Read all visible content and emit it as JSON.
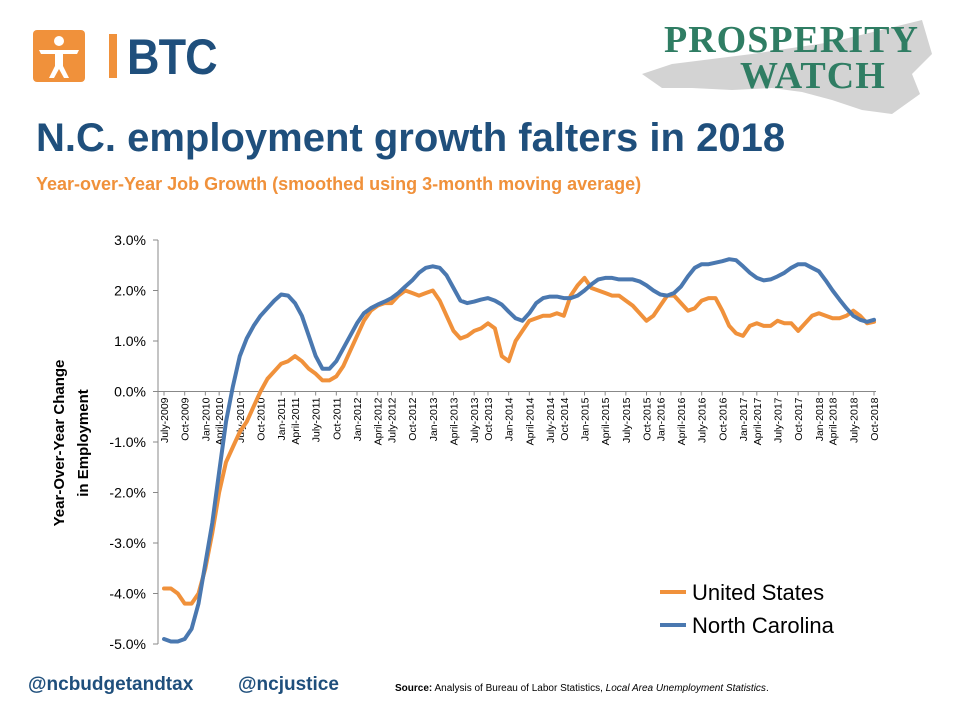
{
  "header": {
    "logo_text": "BTC",
    "brand_line1": "PROSPERITY",
    "brand_line2": "WATCH"
  },
  "title": "N.C. employment growth falters in 2018",
  "subtitle": "Year-over-Year  Job Growth (smoothed using 3-month moving average)",
  "colors": {
    "us": "#f0913b",
    "nc": "#4a78b0",
    "title": "#1f4f7c",
    "brand_green": "#2f7d63"
  },
  "chart_data": {
    "type": "line",
    "ylabel_line1": "Year-Over-Year  Change",
    "ylabel_line2": "in Employment",
    "ylim": [
      -5.0,
      3.0
    ],
    "yticks": [
      "3.0%",
      "2.0%",
      "1.0%",
      "0.0%",
      "-1.0%",
      "-2.0%",
      "-3.0%",
      "-4.0%",
      "-5.0%"
    ],
    "xticklabels": [
      "July-2009",
      "Oct-2009",
      "Jan-2010",
      "April-2010",
      "July-2010",
      "Oct-2010",
      "Jan-2011",
      "April-2011",
      "July-2011",
      "Oct-2011",
      "Jan-2012",
      "April-2012",
      "July-2012",
      "Oct-2012",
      "Jan-2013",
      "April-2013",
      "July-2013",
      "Oct-2013",
      "Jan-2014",
      "April-2014",
      "July-2014",
      "Oct-2014",
      "Jan-2015",
      "April-2015",
      "July-2015",
      "Oct-2015",
      "Jan-2016",
      "April-2016",
      "July-2016",
      "Oct-2016",
      "Jan-2017",
      "April-2017",
      "July-2017",
      "Oct-2017",
      "Jan-2018",
      "April-2018",
      "July-2018",
      "Oct-2018"
    ],
    "x_start": "July-2009",
    "x_end": "Oct-2018",
    "grid": false,
    "legend_position": "bottom-right",
    "series": [
      {
        "name": "United States",
        "color": "#f0913b",
        "values": [
          -3.9,
          -3.9,
          -4.0,
          -4.2,
          -4.2,
          -4.0,
          -3.5,
          -2.8,
          -2.0,
          -1.4,
          -1.1,
          -0.8,
          -0.6,
          -0.3,
          0.0,
          0.25,
          0.4,
          0.55,
          0.6,
          0.7,
          0.6,
          0.45,
          0.35,
          0.22,
          0.22,
          0.3,
          0.5,
          0.8,
          1.1,
          1.4,
          1.6,
          1.7,
          1.75,
          1.75,
          1.9,
          2.0,
          1.95,
          1.9,
          1.95,
          2.0,
          1.8,
          1.5,
          1.2,
          1.05,
          1.1,
          1.2,
          1.25,
          1.35,
          1.25,
          0.7,
          0.6,
          1.0,
          1.2,
          1.4,
          1.45,
          1.5,
          1.5,
          1.55,
          1.5,
          1.9,
          2.1,
          2.25,
          2.05,
          2.0,
          1.95,
          1.9,
          1.9,
          1.8,
          1.7,
          1.55,
          1.4,
          1.5,
          1.7,
          1.9,
          1.9,
          1.75,
          1.6,
          1.65,
          1.8,
          1.85,
          1.85,
          1.6,
          1.3,
          1.15,
          1.1,
          1.3,
          1.35,
          1.3,
          1.3,
          1.4,
          1.35,
          1.35,
          1.2,
          1.35,
          1.5,
          1.55,
          1.5,
          1.45,
          1.45,
          1.5,
          1.6,
          1.5,
          1.35,
          1.38
        ]
      },
      {
        "name": "North Carolina",
        "color": "#4a78b0",
        "values": [
          -4.9,
          -4.95,
          -4.95,
          -4.9,
          -4.7,
          -4.2,
          -3.4,
          -2.6,
          -1.6,
          -0.6,
          0.1,
          0.7,
          1.05,
          1.3,
          1.5,
          1.65,
          1.8,
          1.92,
          1.9,
          1.75,
          1.5,
          1.1,
          0.7,
          0.45,
          0.45,
          0.6,
          0.85,
          1.1,
          1.35,
          1.55,
          1.65,
          1.72,
          1.78,
          1.85,
          1.95,
          2.08,
          2.2,
          2.35,
          2.45,
          2.48,
          2.45,
          2.3,
          2.05,
          1.8,
          1.75,
          1.78,
          1.82,
          1.85,
          1.8,
          1.72,
          1.58,
          1.45,
          1.4,
          1.55,
          1.75,
          1.85,
          1.88,
          1.88,
          1.85,
          1.85,
          1.9,
          2.0,
          2.12,
          2.22,
          2.25,
          2.25,
          2.22,
          2.22,
          2.22,
          2.18,
          2.1,
          2.0,
          1.92,
          1.9,
          1.95,
          2.08,
          2.28,
          2.45,
          2.52,
          2.52,
          2.55,
          2.58,
          2.62,
          2.6,
          2.48,
          2.35,
          2.25,
          2.2,
          2.22,
          2.28,
          2.35,
          2.45,
          2.52,
          2.52,
          2.45,
          2.38,
          2.2,
          2.0,
          1.82,
          1.65,
          1.5,
          1.42,
          1.38,
          1.42
        ]
      }
    ]
  },
  "footer": {
    "handle1": "@ncbudgetandtax",
    "handle2": "@ncjustice",
    "source_label": "Source:",
    "source_text": " Analysis of Bureau of Labor Statistics, ",
    "source_italic": "Local Area Unemployment Statistics",
    "source_end": "."
  }
}
